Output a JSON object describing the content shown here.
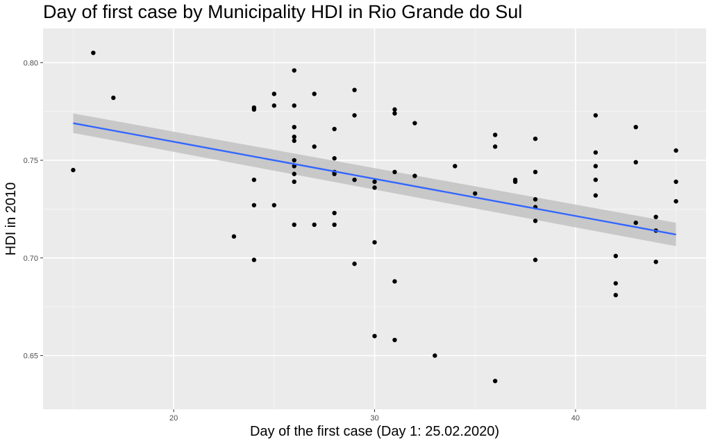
{
  "chart_data": {
    "type": "scatter",
    "title": "Day of first case by Municipality HDI in Rio Grande do Sul",
    "xlabel": "Day of the first case (Day 1: 25.02.2020)",
    "ylabel": "HDI in 2010",
    "xlim": [
      13.5,
      46.5
    ],
    "ylim": [
      0.6225,
      0.8175
    ],
    "x_ticks": [
      20,
      30,
      40
    ],
    "x_tick_labels": [
      "20",
      "30",
      "40"
    ],
    "y_ticks": [
      0.65,
      0.7,
      0.75,
      0.8
    ],
    "y_tick_labels": [
      "0.65",
      "0.70",
      "0.75",
      "0.80"
    ],
    "grid": true,
    "panel_background": "#ebebeb",
    "point_color": "#000000",
    "points": [
      [
        15,
        0.745
      ],
      [
        16,
        0.805
      ],
      [
        17,
        0.782
      ],
      [
        23,
        0.711
      ],
      [
        24,
        0.777
      ],
      [
        24,
        0.776
      ],
      [
        24,
        0.74
      ],
      [
        24,
        0.727
      ],
      [
        24,
        0.699
      ],
      [
        25,
        0.784
      ],
      [
        25,
        0.778
      ],
      [
        25,
        0.727
      ],
      [
        26,
        0.796
      ],
      [
        26,
        0.778
      ],
      [
        26,
        0.767
      ],
      [
        26,
        0.762
      ],
      [
        26,
        0.76
      ],
      [
        26,
        0.75
      ],
      [
        26,
        0.747
      ],
      [
        26,
        0.743
      ],
      [
        26,
        0.739
      ],
      [
        26,
        0.717
      ],
      [
        27,
        0.784
      ],
      [
        27,
        0.757
      ],
      [
        27,
        0.717
      ],
      [
        28,
        0.766
      ],
      [
        28,
        0.751
      ],
      [
        28,
        0.744
      ],
      [
        28,
        0.743
      ],
      [
        28,
        0.723
      ],
      [
        28,
        0.717
      ],
      [
        29,
        0.786
      ],
      [
        29,
        0.773
      ],
      [
        29,
        0.74
      ],
      [
        29,
        0.697
      ],
      [
        30,
        0.739
      ],
      [
        30,
        0.736
      ],
      [
        30,
        0.708
      ],
      [
        30,
        0.66
      ],
      [
        31,
        0.776
      ],
      [
        31,
        0.774
      ],
      [
        31,
        0.744
      ],
      [
        31,
        0.688
      ],
      [
        31,
        0.658
      ],
      [
        32,
        0.769
      ],
      [
        32,
        0.742
      ],
      [
        33,
        0.65
      ],
      [
        34,
        0.747
      ],
      [
        35,
        0.733
      ],
      [
        36,
        0.763
      ],
      [
        36,
        0.757
      ],
      [
        36,
        0.637
      ],
      [
        37,
        0.74
      ],
      [
        37,
        0.739
      ],
      [
        38,
        0.761
      ],
      [
        38,
        0.744
      ],
      [
        38,
        0.73
      ],
      [
        38,
        0.726
      ],
      [
        38,
        0.719
      ],
      [
        38,
        0.699
      ],
      [
        41,
        0.773
      ],
      [
        41,
        0.754
      ],
      [
        41,
        0.747
      ],
      [
        41,
        0.74
      ],
      [
        41,
        0.732
      ],
      [
        42,
        0.701
      ],
      [
        42,
        0.687
      ],
      [
        42,
        0.681
      ],
      [
        43,
        0.767
      ],
      [
        43,
        0.749
      ],
      [
        43,
        0.718
      ],
      [
        44,
        0.721
      ],
      [
        44,
        0.714
      ],
      [
        44,
        0.698
      ],
      [
        45,
        0.755
      ],
      [
        45,
        0.739
      ],
      [
        45,
        0.729
      ]
    ],
    "trend_line": {
      "method": "lm",
      "color": "#3366ff",
      "band_color": "#c2c2c2",
      "x": [
        15,
        45
      ],
      "y": [
        0.769,
        0.712
      ],
      "band_upper": [
        0.774,
        0.718
      ],
      "band_lower": [
        0.764,
        0.706
      ]
    }
  }
}
